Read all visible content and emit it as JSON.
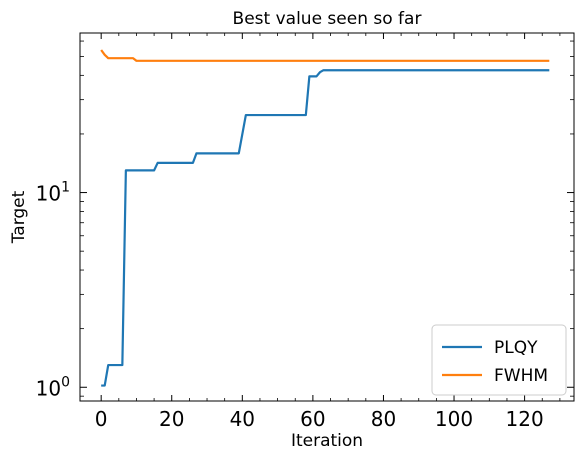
{
  "chart_data": {
    "type": "line",
    "title": "Best value seen so far",
    "xlabel": "Iteration",
    "ylabel": "Target",
    "yscale": "log",
    "xlim": [
      -6,
      134
    ],
    "ylim": [
      0.85,
      66
    ],
    "x_ticks": [
      {
        "value": 0,
        "label": "0"
      },
      {
        "value": 20,
        "label": "20"
      },
      {
        "value": 40,
        "label": "40"
      },
      {
        "value": 60,
        "label": "60"
      },
      {
        "value": 80,
        "label": "80"
      },
      {
        "value": 100,
        "label": "100"
      },
      {
        "value": 120,
        "label": "120"
      }
    ],
    "y_ticks": [
      {
        "value": 1,
        "base": "10",
        "exp": "0"
      },
      {
        "value": 10,
        "base": "10",
        "exp": "1"
      }
    ],
    "legend_position": "lower right",
    "grid": false,
    "series": [
      {
        "name": "PLQY",
        "color": "#1f77b4",
        "points": [
          [
            0,
            1.02
          ],
          [
            1,
            1.02
          ],
          [
            2,
            1.3
          ],
          [
            3,
            1.3
          ],
          [
            4,
            1.3
          ],
          [
            5,
            1.3
          ],
          [
            6,
            1.3
          ],
          [
            7,
            13
          ],
          [
            8,
            13
          ],
          [
            15,
            13
          ],
          [
            16,
            14.2
          ],
          [
            26,
            14.2
          ],
          [
            27,
            15.9
          ],
          [
            39,
            15.9
          ],
          [
            41,
            25
          ],
          [
            58,
            25
          ],
          [
            59,
            39.5
          ],
          [
            61,
            39.5
          ],
          [
            62,
            41.5
          ],
          [
            63,
            42.5
          ],
          [
            127,
            42.5
          ]
        ]
      },
      {
        "name": "FWHM",
        "color": "#ff7f0e",
        "points": [
          [
            0,
            54
          ],
          [
            1,
            51
          ],
          [
            2,
            49
          ],
          [
            3,
            49
          ],
          [
            9,
            49
          ],
          [
            10,
            47.5
          ],
          [
            127,
            47.5
          ]
        ]
      }
    ]
  }
}
